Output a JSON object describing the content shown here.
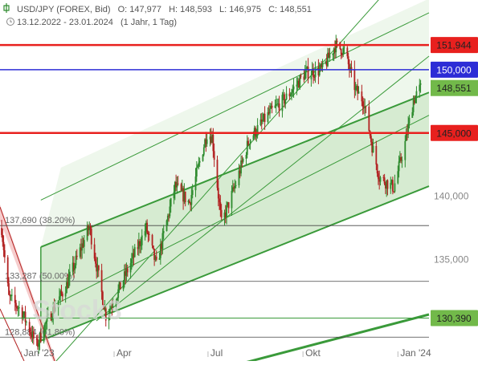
{
  "header": {
    "instrument": "USD/JPY (FOREX, Bid)",
    "open": "O: 147,977",
    "high": "H: 148,593",
    "low": "L: 146,975",
    "close": "C: 148,551",
    "range": "13.12.2022 - 23.01.2024",
    "interval": "(1 Jahr, 1 Tag)"
  },
  "watermark": "Stock3",
  "colors": {
    "up_candle": "#2e8b2e",
    "down_candle": "#b22222",
    "channel_line": "#3a9a3a",
    "channel_fill": "#cfe8c9",
    "resistance_red": "#e8201e",
    "level_blue": "#2d2dd6",
    "tag_green": "#72b94a"
  },
  "chart_data": {
    "type": "candlestick",
    "x_ticks": [
      "Jan '23",
      "Apr",
      "Jul",
      "Okt",
      "Jan '24"
    ],
    "y_ticks": [
      "135,000",
      "140,000",
      "145,000",
      "150,000"
    ],
    "ylim": [
      127.0,
      155.5
    ],
    "last_value": 148.551,
    "price_path": [
      {
        "date": "2022-12-13",
        "value": 137.5
      },
      {
        "date": "2022-12-20",
        "value": 132.0
      },
      {
        "date": "2023-01-01",
        "value": 131.0
      },
      {
        "date": "2023-01-16",
        "value": 128.2
      },
      {
        "date": "2023-01-25",
        "value": 130.0
      },
      {
        "date": "2023-02-14",
        "value": 133.0
      },
      {
        "date": "2023-03-08",
        "value": 137.6
      },
      {
        "date": "2023-03-24",
        "value": 130.6
      },
      {
        "date": "2023-04-05",
        "value": 132.5
      },
      {
        "date": "2023-05-02",
        "value": 137.5
      },
      {
        "date": "2023-05-12",
        "value": 134.5
      },
      {
        "date": "2023-05-30",
        "value": 140.8
      },
      {
        "date": "2023-06-13",
        "value": 139.5
      },
      {
        "date": "2023-06-30",
        "value": 145.0
      },
      {
        "date": "2023-07-05",
        "value": 144.7
      },
      {
        "date": "2023-07-14",
        "value": 137.8
      },
      {
        "date": "2023-07-28",
        "value": 141.0
      },
      {
        "date": "2023-08-10",
        "value": 144.5
      },
      {
        "date": "2023-08-29",
        "value": 146.5
      },
      {
        "date": "2023-09-15",
        "value": 147.8
      },
      {
        "date": "2023-10-03",
        "value": 149.7
      },
      {
        "date": "2023-10-20",
        "value": 150.0
      },
      {
        "date": "2023-11-01",
        "value": 151.9
      },
      {
        "date": "2023-11-10",
        "value": 151.5
      },
      {
        "date": "2023-11-21",
        "value": 148.4
      },
      {
        "date": "2023-11-29",
        "value": 147.5
      },
      {
        "date": "2023-12-07",
        "value": 144.0
      },
      {
        "date": "2023-12-14",
        "value": 141.5
      },
      {
        "date": "2023-12-28",
        "value": 140.7
      },
      {
        "date": "2024-01-08",
        "value": 144.2
      },
      {
        "date": "2024-01-16",
        "value": 147.6
      },
      {
        "date": "2024-01-23",
        "value": 148.551
      }
    ],
    "horizontal_levels": [
      {
        "value": 151.944,
        "label": "151,944",
        "style": "resistance_red"
      },
      {
        "value": 150.0,
        "label": "150,000",
        "style": "level_blue"
      },
      {
        "value": 145.0,
        "label": "145,000",
        "style": "resistance_red"
      },
      {
        "value": 130.39,
        "label": "130,390",
        "style": "tag_green"
      }
    ],
    "fib_levels": [
      {
        "value": 137.69,
        "label": "137,690 (38.20%)"
      },
      {
        "value": 133.287,
        "label": "133,287 (50.00%)"
      },
      {
        "value": 128.884,
        "label": "128,884 (61.80%)"
      }
    ],
    "channel": {
      "lower": [
        {
          "date": "2023-01-20",
          "value": 128.6
        },
        {
          "date": "2024-01-28",
          "value": 140.7
        }
      ],
      "upper": [
        {
          "date": "2023-01-20",
          "value": 136.0
        },
        {
          "date": "2024-01-28",
          "value": 148.1
        }
      ]
    },
    "last_price_tag": "148,551"
  }
}
